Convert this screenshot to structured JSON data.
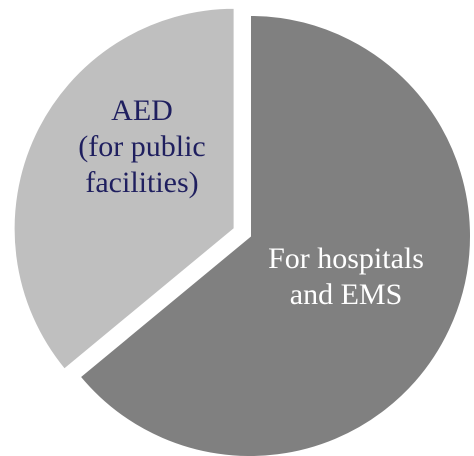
{
  "chart_data": {
    "type": "pie",
    "title": "",
    "slices": [
      {
        "label_lines": [
          "For hospitals",
          "and EMS"
        ],
        "value": 64,
        "color": "#808080",
        "label_color": "#ffffff",
        "exploded": false
      },
      {
        "label_lines": [
          "AED",
          "(for public",
          "facilities)"
        ],
        "value": 36,
        "color": "#bfbfbf",
        "label_color": "#1f1f5f",
        "exploded": true
      }
    ],
    "start_angle_deg": 0,
    "direction": "clockwise",
    "legend": "none",
    "data_labels": "inside slices"
  }
}
